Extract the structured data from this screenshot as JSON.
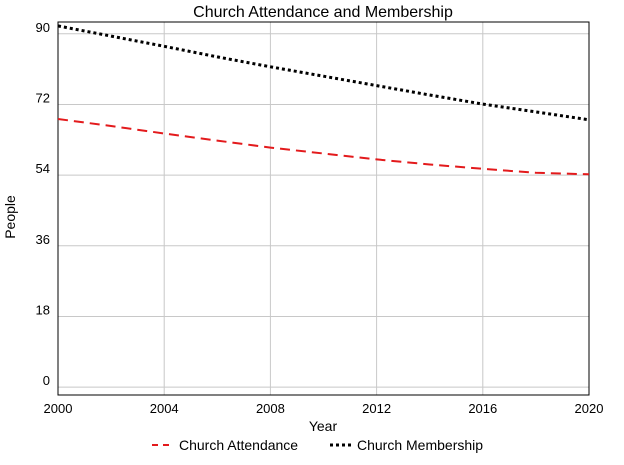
{
  "chart_data": {
    "type": "line",
    "title": "Church Attendance and Membership",
    "xlabel": "Year",
    "ylabel": "People",
    "xlim": [
      2000,
      2020
    ],
    "ylim": [
      -2,
      93
    ],
    "x_ticks": [
      2000,
      2004,
      2008,
      2012,
      2016,
      2020
    ],
    "y_ticks": [
      0,
      18,
      36,
      54,
      72,
      90
    ],
    "grid": true,
    "legend_position": "bottom",
    "x": [
      2000,
      2002,
      2004,
      2006,
      2008,
      2010,
      2012,
      2014,
      2016,
      2018,
      2020
    ],
    "series": [
      {
        "name": "Church Attendance",
        "color": "#e31a1c",
        "style": "dashed",
        "values": [
          68.3,
          66.5,
          64.6,
          62.8,
          61.0,
          59.5,
          58.0,
          56.7,
          55.6,
          54.6,
          54.2
        ]
      },
      {
        "name": "Church Membership",
        "color": "#000000",
        "style": "dotted",
        "values": [
          92.0,
          89.4,
          86.8,
          84.1,
          81.6,
          79.2,
          76.8,
          74.4,
          72.1,
          70.1,
          68.1
        ]
      }
    ]
  }
}
